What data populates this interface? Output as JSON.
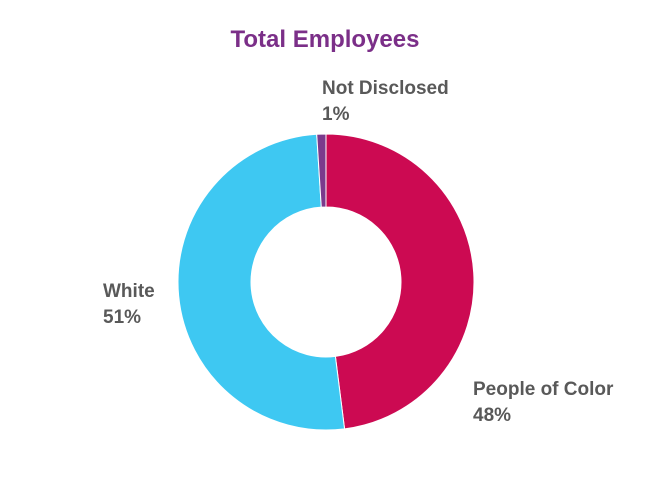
{
  "chart_data": {
    "type": "pie",
    "title": "Total Employees",
    "categories": [
      "People of Color",
      "White",
      "Not Disclosed"
    ],
    "values": [
      48,
      51,
      1
    ],
    "value_labels": [
      "48%",
      "51%",
      "1%"
    ],
    "colors": [
      "#cc0a52",
      "#3ec8f2",
      "#7b3a8c"
    ],
    "donut": true,
    "legend": "none"
  }
}
